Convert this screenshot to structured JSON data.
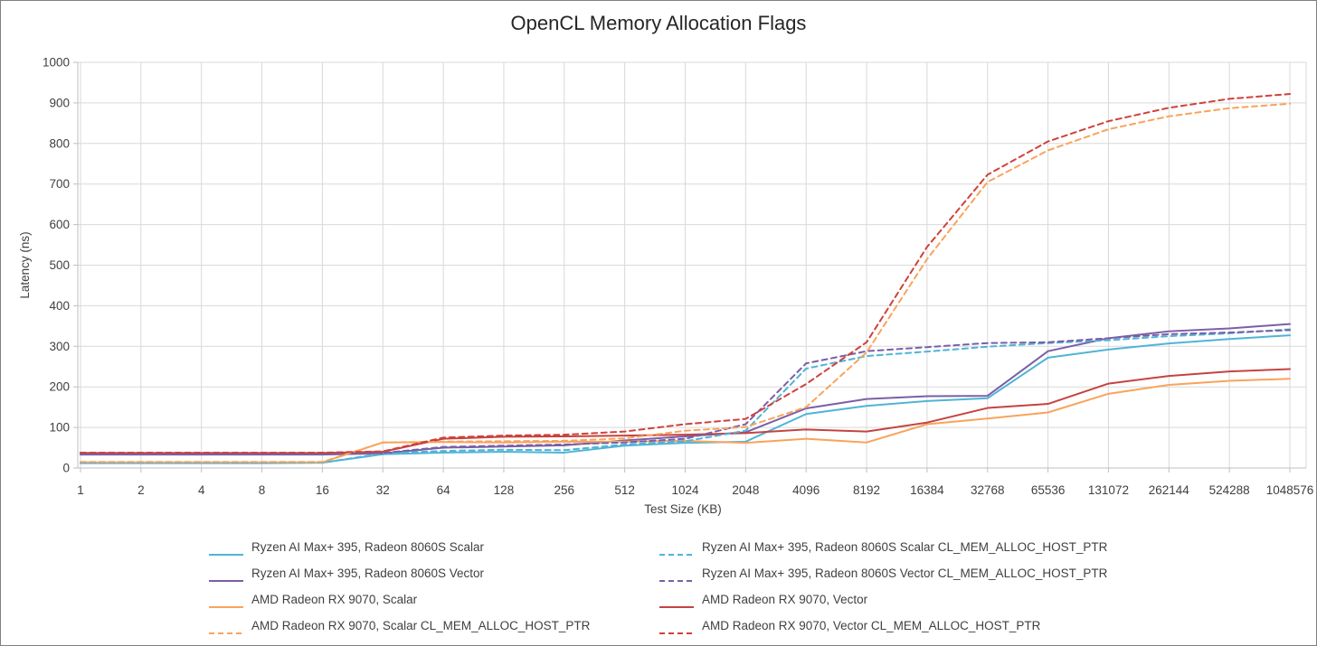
{
  "chart_data": {
    "type": "line",
    "title": "OpenCL Memory Allocation Flags",
    "xlabel": "Test Size (KB)",
    "ylabel": "Latency (ns)",
    "x_scale": "log2",
    "x": [
      1,
      2,
      4,
      8,
      16,
      32,
      64,
      128,
      256,
      512,
      1024,
      2048,
      4096,
      8192,
      16384,
      32768,
      65536,
      131072,
      262144,
      524288,
      1048576
    ],
    "ylim": [
      0,
      1000
    ],
    "ytick_step": 100,
    "grid": true,
    "legend_position": "bottom",
    "series": [
      {
        "name": "Ryzen AI Max+ 395, Radeon 8060S Scalar",
        "color": "#4FB4D6",
        "dashed": false,
        "values": [
          12,
          12,
          12,
          12,
          13,
          34,
          38,
          40,
          38,
          55,
          62,
          65,
          133,
          153,
          165,
          172,
          272,
          292,
          307,
          318,
          327
        ]
      },
      {
        "name": "Ryzen AI Max+ 395, Radeon 8060S Vector",
        "color": "#7A5FA6",
        "dashed": false,
        "values": [
          33,
          33,
          33,
          33,
          33,
          36,
          50,
          53,
          56,
          68,
          78,
          88,
          147,
          170,
          177,
          178,
          288,
          320,
          337,
          344,
          355
        ]
      },
      {
        "name": "AMD Radeon RX 9070, Scalar",
        "color": "#F9A35C",
        "dashed": false,
        "values": [
          14,
          14,
          14,
          14,
          14,
          63,
          64,
          63,
          65,
          65,
          67,
          62,
          72,
          63,
          108,
          122,
          137,
          183,
          205,
          215,
          220
        ]
      },
      {
        "name": "AMD Radeon RX 9070, Vector",
        "color": "#C54340",
        "dashed": false,
        "values": [
          37,
          37,
          37,
          37,
          37,
          40,
          72,
          77,
          78,
          80,
          82,
          86,
          95,
          90,
          112,
          148,
          158,
          208,
          227,
          238,
          244
        ]
      },
      {
        "name": "Ryzen AI Max+ 395, Radeon 8060S Scalar CL_MEM_ALLOC_HOST_PTR",
        "color": "#4FB4D6",
        "dashed": true,
        "values": [
          13,
          13,
          13,
          13,
          13,
          36,
          42,
          45,
          44,
          58,
          66,
          92,
          245,
          276,
          287,
          299,
          308,
          315,
          325,
          332,
          342
        ]
      },
      {
        "name": "Ryzen AI Max+ 395, Radeon 8060S Vector CL_MEM_ALLOC_HOST_PTR",
        "color": "#7A5FA6",
        "dashed": true,
        "values": [
          34,
          34,
          34,
          34,
          34,
          37,
          52,
          55,
          58,
          63,
          72,
          108,
          258,
          288,
          298,
          308,
          310,
          320,
          330,
          334,
          340
        ]
      },
      {
        "name": "AMD Radeon RX 9070, Scalar CL_MEM_ALLOC_HOST_PTR",
        "color": "#F9A35C",
        "dashed": true,
        "values": [
          15,
          15,
          15,
          15,
          15,
          63,
          65,
          66,
          67,
          73,
          92,
          101,
          150,
          285,
          515,
          705,
          783,
          835,
          867,
          887,
          898
        ]
      },
      {
        "name": "AMD Radeon RX 9070, Vector CL_MEM_ALLOC_HOST_PTR",
        "color": "#CE423B",
        "dashed": true,
        "values": [
          38,
          38,
          38,
          38,
          38,
          41,
          75,
          80,
          82,
          90,
          108,
          121,
          207,
          310,
          545,
          723,
          805,
          855,
          888,
          910,
          922
        ]
      }
    ]
  },
  "legend": {
    "items": [
      {
        "label": "Ryzen AI Max+ 395, Radeon 8060S Scalar",
        "color": "#4FB4D6",
        "dashed": false
      },
      {
        "label": "Ryzen AI Max+ 395, Radeon 8060S Vector",
        "color": "#7A5FA6",
        "dashed": false
      },
      {
        "label": "AMD Radeon RX 9070, Scalar",
        "color": "#F9A35C",
        "dashed": false
      },
      {
        "label": "AMD Radeon RX 9070, Scalar CL_MEM_ALLOC_HOST_PTR",
        "color": "#F9A35C",
        "dashed": true
      },
      {
        "label": "Ryzen AI Max+ 395, Radeon 8060S Scalar CL_MEM_ALLOC_HOST_PTR",
        "color": "#4FB4D6",
        "dashed": true
      },
      {
        "label": "Ryzen AI Max+ 395, Radeon 8060S Vector CL_MEM_ALLOC_HOST_PTR",
        "color": "#7A5FA6",
        "dashed": true
      },
      {
        "label": "AMD Radeon RX 9070, Vector",
        "color": "#C54340",
        "dashed": false
      },
      {
        "label": "AMD Radeon RX 9070, Vector CL_MEM_ALLOC_HOST_PTR",
        "color": "#CE423B",
        "dashed": true
      }
    ]
  },
  "style": {
    "grid_color": "#D9D9D9",
    "axis_color": "#BFBFBF",
    "text_color": "#404040"
  }
}
